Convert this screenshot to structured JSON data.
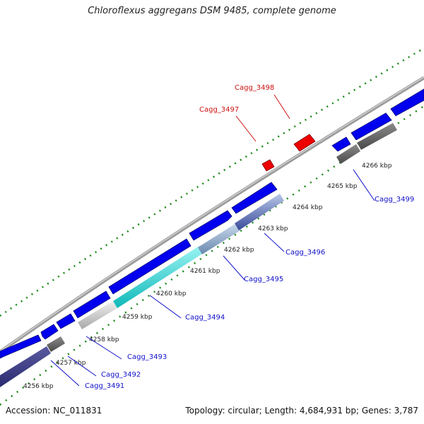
{
  "title": "Chloroflexus aggregans DSM 9485, complete genome",
  "footer": {
    "accession": "Accession: NC_011831",
    "summary": "Topology: circular; Length: 4,684,931 bp; Genes: 3,787"
  },
  "colors": {
    "forward_gene": "#0000ee",
    "hypothetical_gene": "#ee0000",
    "label_blue": "#1010c8",
    "label_red": "#cc1010",
    "backbone": "#8a8a8a",
    "dots": "#1a8a1a"
  },
  "scale_ticks": [
    "4256 kbp",
    "4257 kbp",
    "4258 kbp",
    "4259 kbp",
    "4260 kbp",
    "4261 kbp",
    "4262 kbp",
    "4263 kbp",
    "4264 kbp",
    "4265 kbp",
    "4266 kbp"
  ],
  "gene_labels": [
    {
      "text": "Cagg_3491",
      "color": "blue"
    },
    {
      "text": "Cagg_3492",
      "color": "blue"
    },
    {
      "text": "Cagg_3493",
      "color": "blue"
    },
    {
      "text": "Cagg_3494",
      "color": "blue"
    },
    {
      "text": "Cagg_3495",
      "color": "blue"
    },
    {
      "text": "Cagg_3496",
      "color": "blue"
    },
    {
      "text": "Cagg_3497",
      "color": "red"
    },
    {
      "text": "Cagg_3498",
      "color": "red"
    },
    {
      "text": "Cagg_3499",
      "color": "blue"
    }
  ]
}
